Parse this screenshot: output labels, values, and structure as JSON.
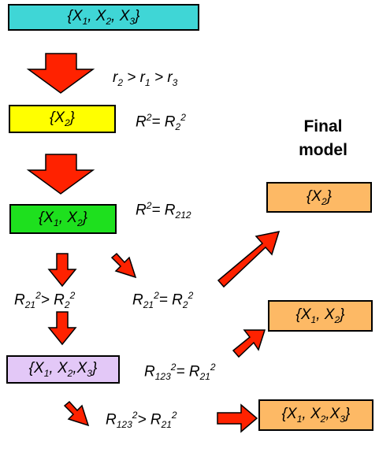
{
  "final_title": [
    "Final",
    "model"
  ],
  "boxes": {
    "b1": {
      "parts": [
        "{X",
        "1",
        ", X",
        "2",
        ", X",
        "3",
        "}"
      ],
      "fill": "#3fd6d6"
    },
    "b2": {
      "parts": [
        "{X",
        "2",
        "}"
      ],
      "fill": "#ffff00"
    },
    "b3": {
      "parts": [
        "{X",
        "1",
        ", X",
        "2",
        "}"
      ],
      "fill": "#1ee01e"
    },
    "b4": {
      "parts": [
        "{X",
        "1",
        ", X",
        "2",
        ",X",
        "3",
        "}"
      ],
      "fill": "#e3c8f7"
    },
    "f1": {
      "parts": [
        "{X",
        "2",
        "}"
      ],
      "fill": "#fdb965"
    },
    "f2": {
      "parts": [
        "{X",
        "1",
        ", X",
        "2",
        "}"
      ],
      "fill": "#fdb965"
    },
    "f3": {
      "parts": [
        "{X",
        "1",
        ", X",
        "2",
        ",X",
        "3",
        "}"
      ],
      "fill": "#fdb965"
    }
  },
  "labels": {
    "l1": [
      "r",
      "2",
      " > r",
      "1",
      " > r",
      "3"
    ],
    "l2": [
      "R",
      "2",
      "= R",
      "2",
      "2"
    ],
    "l3": [
      "R",
      "2",
      "= R",
      "21",
      "2"
    ],
    "l4": [
      "R",
      "21",
      "2",
      "> R",
      "2",
      "2"
    ],
    "l5": [
      "R",
      "21",
      "2",
      "= R",
      "2",
      "2"
    ],
    "l6": [
      "R",
      "123",
      "2",
      "= R",
      "21",
      "2"
    ],
    "l7": [
      "R",
      "123",
      "2",
      "> R",
      "21",
      "2"
    ]
  },
  "colors": {
    "arrow": "#ff2200",
    "arrow_stroke": "#000000"
  }
}
